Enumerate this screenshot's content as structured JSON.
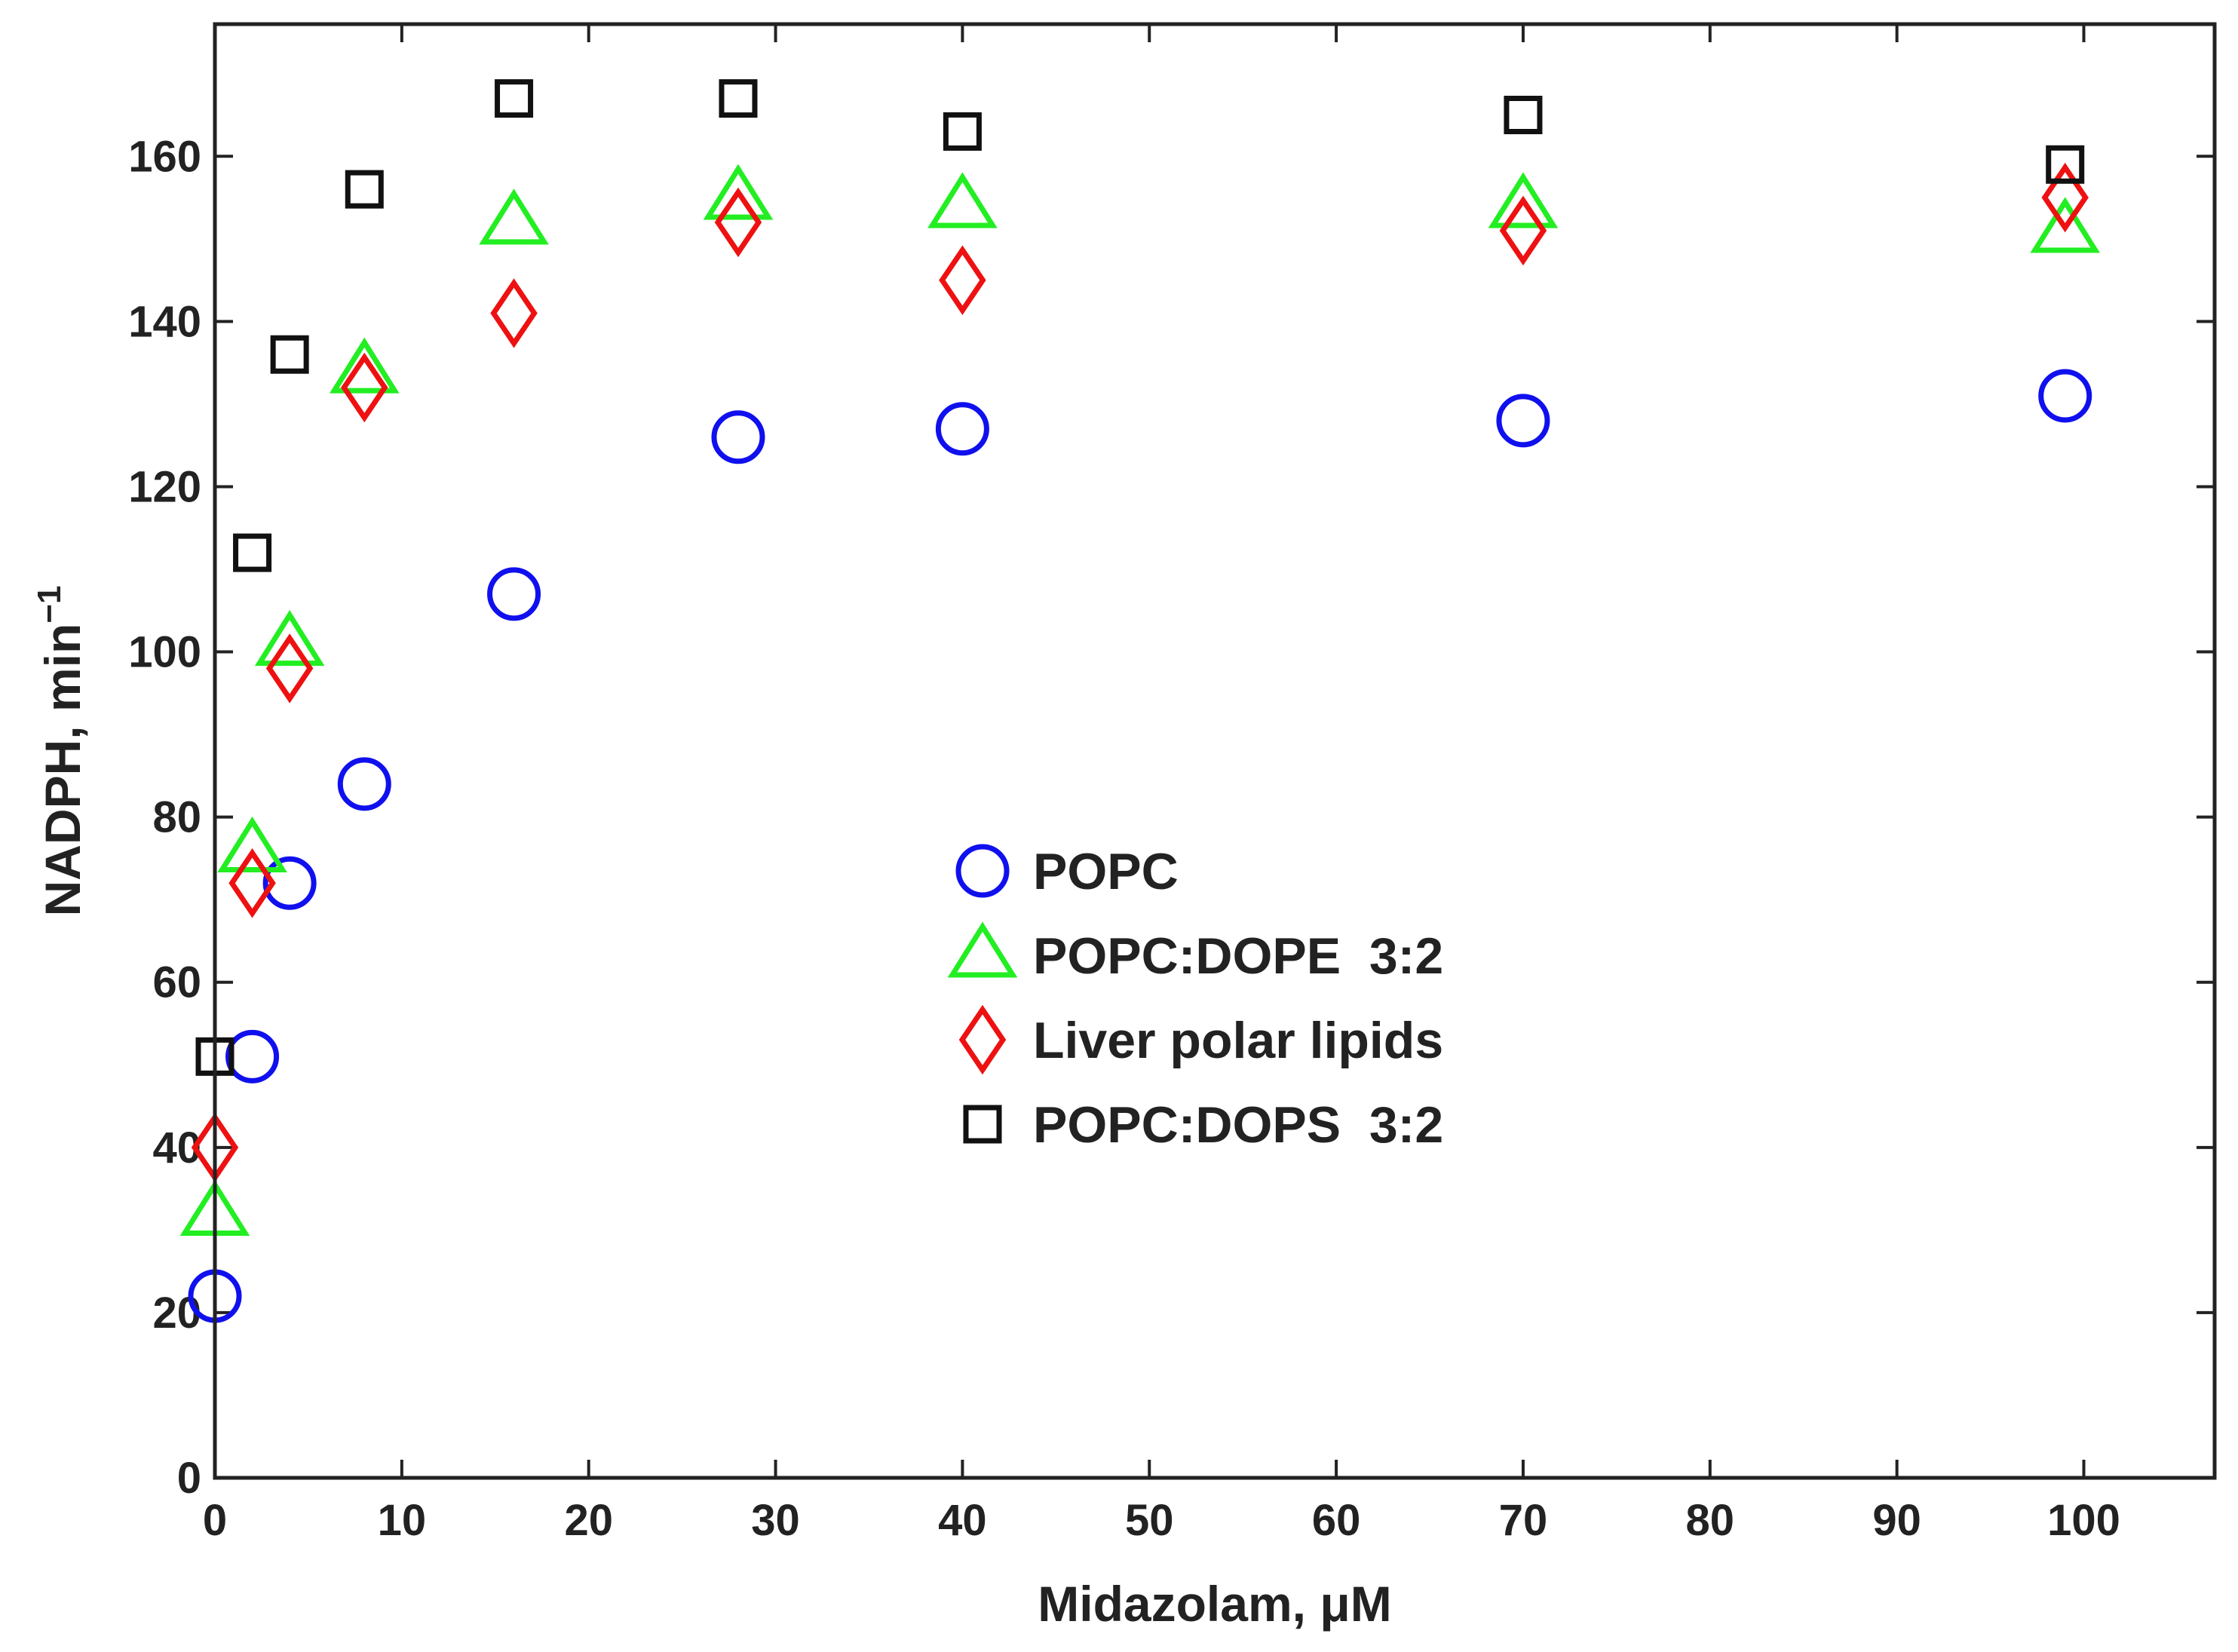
{
  "chart_data": {
    "type": "scatter",
    "title": "",
    "xlabel": "Midazolam, μM",
    "ylabel": "NADPH, min",
    "ylabel_superscript": "−1",
    "xlim": [
      0,
      107
    ],
    "ylim": [
      0,
      176
    ],
    "x_ticks": [
      0,
      10,
      20,
      30,
      40,
      50,
      60,
      70,
      80,
      90,
      100
    ],
    "y_ticks": [
      0,
      20,
      40,
      60,
      80,
      100,
      120,
      140,
      160
    ],
    "x_tick_labels": [
      "0",
      "10",
      "20",
      "30",
      "40",
      "50",
      "60",
      "70",
      "80",
      "90",
      "100"
    ],
    "y_tick_labels": [
      "0",
      "20",
      "40",
      "60",
      "80",
      "100",
      "120",
      "140",
      "160"
    ],
    "grid": false,
    "legend_position": "center",
    "series": [
      {
        "name": "POPC",
        "marker": "circle",
        "color": "#1010ee",
        "x": [
          0,
          2,
          4,
          8,
          16,
          28,
          40,
          70,
          99
        ],
        "y": [
          22,
          51,
          72,
          84,
          107,
          126,
          127,
          128,
          131
        ]
      },
      {
        "name": "POPC:DOPE  3:2",
        "marker": "triangle",
        "color": "#22ee22",
        "x": [
          0,
          2,
          4,
          8,
          16,
          28,
          40,
          70,
          99
        ],
        "y": [
          32,
          76,
          101,
          134,
          152,
          155,
          154,
          154,
          151
        ]
      },
      {
        "name": "Liver polar lipids",
        "marker": "diamond",
        "color": "#ee1111",
        "x": [
          0,
          2,
          4,
          8,
          16,
          28,
          40,
          70,
          99
        ],
        "y": [
          40,
          72,
          98,
          132,
          141,
          152,
          145,
          151,
          155
        ]
      },
      {
        "name": "POPC:DOPS  3:2",
        "marker": "square",
        "color": "#111111",
        "x": [
          0,
          2,
          4,
          8,
          16,
          28,
          40,
          70,
          99
        ],
        "y": [
          51,
          112,
          136,
          156,
          167,
          167,
          163,
          165,
          159
        ]
      }
    ]
  }
}
